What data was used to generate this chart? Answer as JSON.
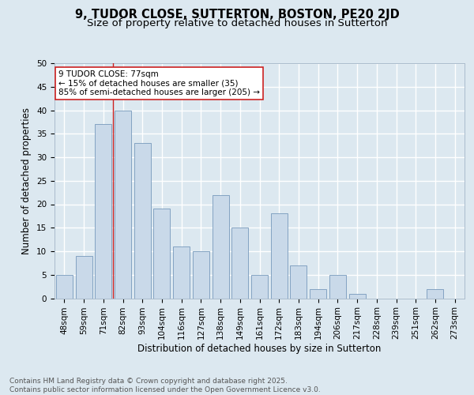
{
  "title1": "9, TUDOR CLOSE, SUTTERTON, BOSTON, PE20 2JD",
  "title2": "Size of property relative to detached houses in Sutterton",
  "xlabel": "Distribution of detached houses by size in Sutterton",
  "ylabel": "Number of detached properties",
  "categories": [
    "48sqm",
    "59sqm",
    "71sqm",
    "82sqm",
    "93sqm",
    "104sqm",
    "116sqm",
    "127sqm",
    "138sqm",
    "149sqm",
    "161sqm",
    "172sqm",
    "183sqm",
    "194sqm",
    "206sqm",
    "217sqm",
    "228sqm",
    "239sqm",
    "251sqm",
    "262sqm",
    "273sqm"
  ],
  "values": [
    5,
    9,
    37,
    40,
    33,
    19,
    11,
    10,
    22,
    15,
    5,
    18,
    7,
    2,
    5,
    1,
    0,
    0,
    0,
    2,
    0
  ],
  "bar_color": "#c9d9e9",
  "bar_edge_color": "#7799bb",
  "vline_color": "#cc2222",
  "annotation_text": "9 TUDOR CLOSE: 77sqm\n← 15% of detached houses are smaller (35)\n85% of semi-detached houses are larger (205) →",
  "annotation_box_color": "#ffffff",
  "annotation_box_edge_color": "#cc2222",
  "background_color": "#dce8f0",
  "plot_bg_color": "#dce8f0",
  "ylim": [
    0,
    50
  ],
  "yticks": [
    0,
    5,
    10,
    15,
    20,
    25,
    30,
    35,
    40,
    45,
    50
  ],
  "footer_text": "Contains HM Land Registry data © Crown copyright and database right 2025.\nContains public sector information licensed under the Open Government Licence v3.0.",
  "title_fontsize": 10.5,
  "subtitle_fontsize": 9.5,
  "axis_label_fontsize": 8.5,
  "tick_fontsize": 7.5,
  "annotation_fontsize": 7.5,
  "footer_fontsize": 6.5,
  "grid_color": "#ffffff",
  "grid_linewidth": 1.0
}
